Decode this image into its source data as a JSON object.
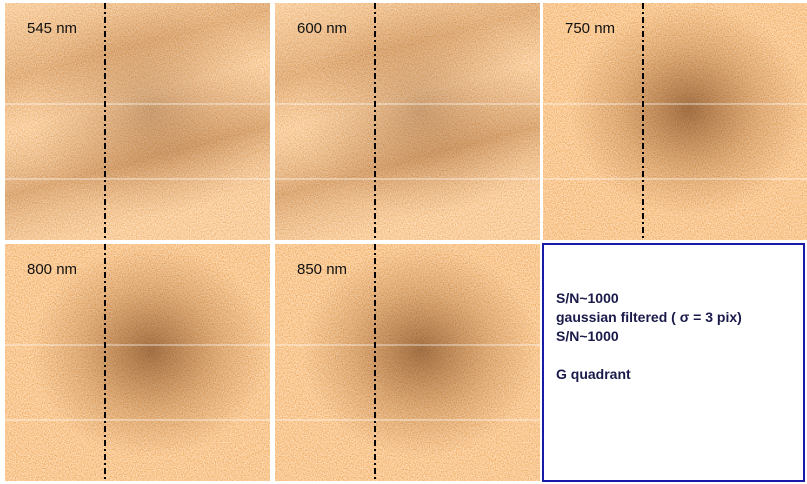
{
  "panels": [
    {
      "label": "545 nm"
    },
    {
      "label": "600 nm"
    },
    {
      "label": "750 nm"
    },
    {
      "label": "800 nm"
    },
    {
      "label": "850 nm"
    }
  ],
  "note": {
    "lines": [
      "S/N~1000",
      "gaussian filtered ( σ = 3 pix)",
      "S/N~1000"
    ],
    "quadrant": "G quadrant"
  }
}
